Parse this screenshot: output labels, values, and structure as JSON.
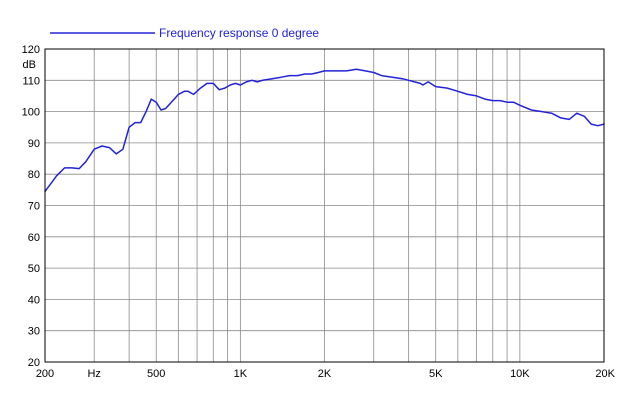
{
  "chart_data": {
    "type": "line",
    "xscale": "log",
    "xlim": [
      200,
      20000
    ],
    "ylim": [
      20,
      120
    ],
    "yunit": "dB",
    "xunit": "Hz",
    "grid": true,
    "legend_position": "top-left",
    "line_color": "#2323d8",
    "series": [
      {
        "name": "Frequency response 0 degree",
        "x": [
          200,
          210,
          220,
          235,
          250,
          265,
          280,
          300,
          320,
          340,
          360,
          380,
          400,
          420,
          440,
          460,
          480,
          500,
          520,
          540,
          560,
          580,
          600,
          630,
          650,
          680,
          720,
          760,
          800,
          840,
          880,
          920,
          960,
          1000,
          1050,
          1100,
          1150,
          1200,
          1300,
          1400,
          1500,
          1600,
          1700,
          1800,
          1900,
          2000,
          2100,
          2200,
          2400,
          2600,
          2800,
          3000,
          3200,
          3500,
          3800,
          4000,
          4200,
          4400,
          4500,
          4700,
          5000,
          5500,
          6000,
          6500,
          7000,
          7500,
          8000,
          8500,
          9000,
          9500,
          10000,
          11000,
          12000,
          13000,
          14000,
          15000,
          16000,
          17000,
          18000,
          19000,
          20000
        ],
        "values": [
          74.5,
          77,
          79.5,
          82,
          82,
          81.8,
          84,
          88,
          89,
          88.5,
          86.5,
          88,
          95,
          96.5,
          96.5,
          100,
          104,
          103,
          100.5,
          101,
          102.5,
          104,
          105.5,
          106.5,
          106.5,
          105.5,
          107.5,
          109,
          109,
          107,
          107.5,
          108.5,
          109,
          108.5,
          109.5,
          110,
          109.5,
          110,
          110.5,
          111,
          111.5,
          111.5,
          112,
          112,
          112.5,
          113,
          113,
          113,
          113,
          113.5,
          113,
          112.5,
          111.5,
          111,
          110.5,
          110,
          109.5,
          109,
          108.5,
          109.5,
          108,
          107.5,
          106.5,
          105.5,
          105,
          104,
          103.5,
          103.5,
          103,
          103,
          102,
          100.5,
          100,
          99.5,
          98,
          97.5,
          99.5,
          98.5,
          96,
          95.5,
          96
        ]
      }
    ],
    "y_ticks": [
      20,
      30,
      40,
      50,
      60,
      70,
      80,
      90,
      100,
      110,
      120
    ],
    "x_major_ticks": [
      {
        "value": 200,
        "label": "200"
      },
      {
        "value": 300,
        "label": "Hz"
      },
      {
        "value": 500,
        "label": "500"
      },
      {
        "value": 1000,
        "label": "1K"
      },
      {
        "value": 2000,
        "label": "2K"
      },
      {
        "value": 5000,
        "label": "5K"
      },
      {
        "value": 10000,
        "label": "10K"
      },
      {
        "value": 20000,
        "label": "20K"
      }
    ],
    "x_grid_lines": [
      200,
      300,
      400,
      500,
      600,
      700,
      800,
      900,
      1000,
      2000,
      3000,
      4000,
      5000,
      6000,
      7000,
      8000,
      9000,
      10000,
      20000
    ]
  }
}
